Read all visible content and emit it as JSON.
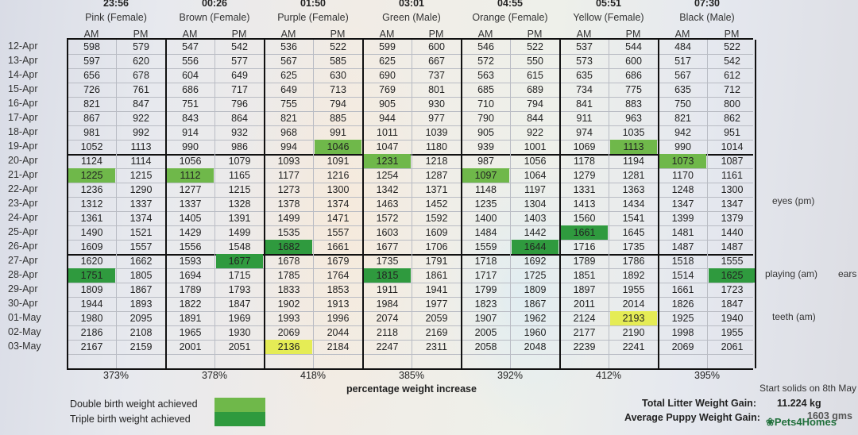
{
  "colors": {
    "double_birth_weight": "#6fb84a",
    "triple_birth_weight": "#2f9a3e",
    "yellow_highlight": "#e5ec55"
  },
  "puppies": [
    {
      "time": "23:56",
      "name": "Pink (Female)",
      "pct": "373%"
    },
    {
      "time": "00:26",
      "name": "Brown (Female)",
      "pct": "378%"
    },
    {
      "time": "01:50",
      "name": "Purple (Female)",
      "pct": "418%"
    },
    {
      "time": "03:01",
      "name": "Green (Male)",
      "pct": "385%"
    },
    {
      "time": "04:55",
      "name": "Orange (Female)",
      "pct": "392%"
    },
    {
      "time": "05:51",
      "name": "Yellow (Female)",
      "pct": "412%"
    },
    {
      "time": "07:30",
      "name": "Black (Male)",
      "pct": "395%"
    }
  ],
  "am_label": "AM",
  "pm_label": "PM",
  "rows": [
    {
      "date": "12-Apr",
      "vals": [
        "598",
        "579",
        "547",
        "542",
        "536",
        "522",
        "599",
        "600",
        "546",
        "522",
        "537",
        "544",
        "484",
        "522"
      ]
    },
    {
      "date": "13-Apr",
      "vals": [
        "597",
        "620",
        "556",
        "577",
        "567",
        "585",
        "625",
        "667",
        "572",
        "550",
        "573",
        "600",
        "517",
        "542"
      ]
    },
    {
      "date": "14-Apr",
      "vals": [
        "656",
        "678",
        "604",
        "649",
        "625",
        "630",
        "690",
        "737",
        "563",
        "615",
        "635",
        "686",
        "567",
        "612"
      ]
    },
    {
      "date": "15-Apr",
      "vals": [
        "726",
        "761",
        "686",
        "717",
        "649",
        "713",
        "769",
        "801",
        "685",
        "689",
        "734",
        "775",
        "635",
        "712"
      ]
    },
    {
      "date": "16-Apr",
      "vals": [
        "821",
        "847",
        "751",
        "796",
        "755",
        "794",
        "905",
        "930",
        "710",
        "794",
        "841",
        "883",
        "750",
        "800"
      ]
    },
    {
      "date": "17-Apr",
      "vals": [
        "867",
        "922",
        "843",
        "864",
        "821",
        "885",
        "944",
        "977",
        "790",
        "844",
        "911",
        "963",
        "821",
        "862"
      ]
    },
    {
      "date": "18-Apr",
      "vals": [
        "981",
        "992",
        "914",
        "932",
        "968",
        "991",
        "1011",
        "1039",
        "905",
        "922",
        "974",
        "1035",
        "942",
        "951"
      ]
    },
    {
      "date": "19-Apr",
      "vals": [
        "1052",
        "1113",
        "990",
        "986",
        "994",
        "1046",
        "1047",
        "1180",
        "939",
        "1001",
        "1069",
        "1113",
        "990",
        "1014"
      ]
    },
    {
      "date": "20-Apr",
      "vals": [
        "1124",
        "1114",
        "1056",
        "1079",
        "1093",
        "1091",
        "1231",
        "1218",
        "987",
        "1056",
        "1178",
        "1194",
        "1073",
        "1087"
      ]
    },
    {
      "date": "21-Apr",
      "vals": [
        "1225",
        "1215",
        "1112",
        "1165",
        "1177",
        "1216",
        "1254",
        "1287",
        "1097",
        "1064",
        "1279",
        "1281",
        "1170",
        "1161"
      ]
    },
    {
      "date": "22-Apr",
      "vals": [
        "1236",
        "1290",
        "1277",
        "1215",
        "1273",
        "1300",
        "1342",
        "1371",
        "1148",
        "1197",
        "1331",
        "1363",
        "1248",
        "1300"
      ]
    },
    {
      "date": "23-Apr",
      "vals": [
        "1312",
        "1337",
        "1337",
        "1328",
        "1378",
        "1374",
        "1463",
        "1452",
        "1235",
        "1304",
        "1413",
        "1434",
        "1347",
        "1347"
      ]
    },
    {
      "date": "24-Apr",
      "vals": [
        "1361",
        "1374",
        "1405",
        "1391",
        "1499",
        "1471",
        "1572",
        "1592",
        "1400",
        "1403",
        "1560",
        "1541",
        "1399",
        "1379"
      ]
    },
    {
      "date": "25-Apr",
      "vals": [
        "1490",
        "1521",
        "1429",
        "1499",
        "1535",
        "1557",
        "1603",
        "1609",
        "1484",
        "1442",
        "1661",
        "1645",
        "1481",
        "1440"
      ]
    },
    {
      "date": "26-Apr",
      "vals": [
        "1609",
        "1557",
        "1556",
        "1548",
        "1682",
        "1661",
        "1677",
        "1706",
        "1559",
        "1644",
        "1716",
        "1735",
        "1487",
        "1487"
      ]
    },
    {
      "date": "27-Apr",
      "vals": [
        "1620",
        "1662",
        "1593",
        "1677",
        "1678",
        "1679",
        "1735",
        "1791",
        "1718",
        "1692",
        "1789",
        "1786",
        "1518",
        "1555"
      ]
    },
    {
      "date": "28-Apr",
      "vals": [
        "1751",
        "1805",
        "1694",
        "1715",
        "1785",
        "1764",
        "1815",
        "1861",
        "1717",
        "1725",
        "1851",
        "1892",
        "1514",
        "1625"
      ]
    },
    {
      "date": "29-Apr",
      "vals": [
        "1809",
        "1867",
        "1789",
        "1793",
        "1833",
        "1853",
        "1911",
        "1941",
        "1799",
        "1809",
        "1897",
        "1955",
        "1661",
        "1723"
      ]
    },
    {
      "date": "30-Apr",
      "vals": [
        "1944",
        "1893",
        "1822",
        "1847",
        "1902",
        "1913",
        "1984",
        "1977",
        "1823",
        "1867",
        "2011",
        "2014",
        "1826",
        "1847"
      ]
    },
    {
      "date": "01-May",
      "vals": [
        "1980",
        "2095",
        "1891",
        "1969",
        "1993",
        "1996",
        "2074",
        "2059",
        "1907",
        "1962",
        "2124",
        "2193",
        "1925",
        "1940"
      ]
    },
    {
      "date": "02-May",
      "vals": [
        "2186",
        "2108",
        "1965",
        "1930",
        "2069",
        "2044",
        "2118",
        "2169",
        "2005",
        "1960",
        "2177",
        "2190",
        "1998",
        "1955"
      ]
    },
    {
      "date": "03-May",
      "vals": [
        "2167",
        "2159",
        "2001",
        "2051",
        "2136",
        "2184",
        "2247",
        "2311",
        "2058",
        "2048",
        "2239",
        "2241",
        "2069",
        "2061"
      ]
    }
  ],
  "highlights": [
    {
      "row": 9,
      "col": 0,
      "kind": "double"
    },
    {
      "row": 9,
      "col": 2,
      "kind": "double"
    },
    {
      "row": 7,
      "col": 5,
      "kind": "double"
    },
    {
      "row": 8,
      "col": 6,
      "kind": "double"
    },
    {
      "row": 9,
      "col": 8,
      "kind": "double"
    },
    {
      "row": 7,
      "col": 11,
      "kind": "double"
    },
    {
      "row": 8,
      "col": 12,
      "kind": "double"
    },
    {
      "row": 16,
      "col": 0,
      "kind": "triple"
    },
    {
      "row": 15,
      "col": 3,
      "kind": "triple"
    },
    {
      "row": 14,
      "col": 4,
      "kind": "triple"
    },
    {
      "row": 16,
      "col": 6,
      "kind": "triple"
    },
    {
      "row": 14,
      "col": 9,
      "kind": "triple"
    },
    {
      "row": 13,
      "col": 10,
      "kind": "triple"
    },
    {
      "row": 16,
      "col": 13,
      "kind": "triple"
    },
    {
      "row": 21,
      "col": 4,
      "kind": "yellow"
    },
    {
      "row": 19,
      "col": 11,
      "kind": "yellow"
    }
  ],
  "notes": {
    "eyes": "eyes (pm)",
    "playing": "playing (am)",
    "ears": "ears",
    "teeth": "teeth (am)",
    "solids": "Start solids on 8th May"
  },
  "footer": {
    "pct_caption": "percentage weight increase",
    "legend_double": "Double birth weight achieved",
    "legend_triple": "Triple birth weight achieved",
    "total_label": "Total Litter Weight Gain:",
    "total_value": "11.224 kg",
    "avg_label": "Average Puppy Weight Gain:",
    "avg_value": "1603 gms",
    "brand": "Pets4Homes"
  }
}
